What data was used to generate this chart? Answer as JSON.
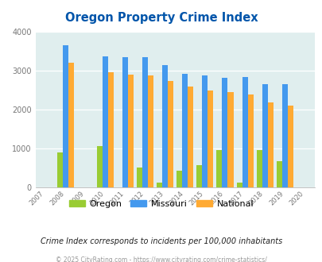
{
  "title": "Oregon Property Crime Index",
  "years": [
    2008,
    2010,
    2011,
    2012,
    2013,
    2014,
    2015,
    2016,
    2017,
    2018,
    2019
  ],
  "oregon": [
    900,
    1060,
    0,
    500,
    130,
    420,
    560,
    950,
    130,
    950,
    680
  ],
  "missouri": [
    3650,
    3360,
    3340,
    3340,
    3140,
    2920,
    2870,
    2820,
    2840,
    2640,
    2640
  ],
  "national": [
    3200,
    2950,
    2900,
    2870,
    2720,
    2590,
    2490,
    2450,
    2380,
    2170,
    2100
  ],
  "oregon_color": "#99cc33",
  "missouri_color": "#4499ee",
  "national_color": "#ffaa33",
  "bg_color": "#e0eeee",
  "title_color": "#0055aa",
  "ylim": [
    0,
    4000
  ],
  "xlim": [
    2006.5,
    2020.5
  ],
  "xtick_years": [
    2007,
    2008,
    2009,
    2010,
    2011,
    2012,
    2013,
    2014,
    2015,
    2016,
    2017,
    2018,
    2019,
    2020
  ],
  "footnote": "Crime Index corresponds to incidents per 100,000 inhabitants",
  "copyright": "© 2025 CityRating.com - https://www.cityrating.com/crime-statistics/"
}
